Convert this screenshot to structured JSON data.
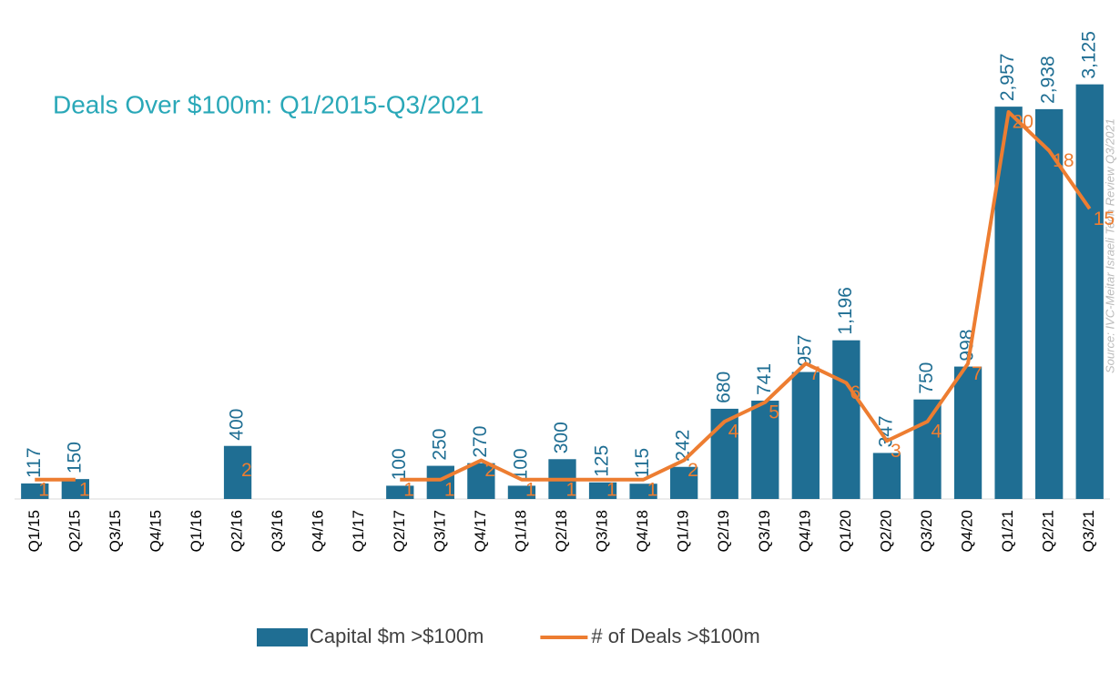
{
  "chart_data": {
    "type": "bar+line",
    "title": "Deals Over $100m:  Q1/2015-Q3/2021",
    "source": "Source: IVC-Meitar Israeli Tech Review Q3/2021",
    "categories": [
      "Q1/15",
      "Q2/15",
      "Q3/15",
      "Q4/15",
      "Q1/16",
      "Q2/16",
      "Q3/16",
      "Q4/16",
      "Q1/17",
      "Q2/17",
      "Q3/17",
      "Q4/17",
      "Q1/18",
      "Q2/18",
      "Q3/18",
      "Q4/18",
      "Q1/19",
      "Q2/19",
      "Q3/19",
      "Q4/19",
      "Q1/20",
      "Q2/20",
      "Q3/20",
      "Q4/20",
      "Q1/21",
      "Q2/21",
      "Q3/21"
    ],
    "series": [
      {
        "name": "Capital $m >$100m",
        "color": "#1f6e93",
        "type": "bar",
        "values": [
          117,
          150,
          null,
          null,
          null,
          400,
          null,
          null,
          null,
          100,
          250,
          270,
          100,
          300,
          125,
          115,
          242,
          680,
          741,
          957,
          1196,
          347,
          750,
          998,
          2957,
          2938,
          3125
        ],
        "value_labels": [
          "117",
          "150",
          null,
          null,
          null,
          "400",
          null,
          null,
          null,
          "100",
          "250",
          "270",
          "100",
          "300",
          "125",
          "115",
          "242",
          "680",
          "741",
          "957",
          "1,196",
          "347",
          "750",
          "998",
          "2,957",
          "2,938",
          "3,125"
        ]
      },
      {
        "name": "# of Deals >$100m",
        "color": "#ed7d31",
        "type": "line",
        "axis": "y2",
        "values": [
          1,
          1,
          null,
          null,
          null,
          2,
          null,
          null,
          null,
          1,
          1,
          2,
          1,
          1,
          1,
          1,
          2,
          4,
          5,
          7,
          6,
          3,
          4,
          7,
          20,
          18,
          15
        ]
      }
    ],
    "ylim": [
      0,
      3500
    ],
    "y2lim": [
      0,
      24
    ],
    "legend": "bottom"
  }
}
